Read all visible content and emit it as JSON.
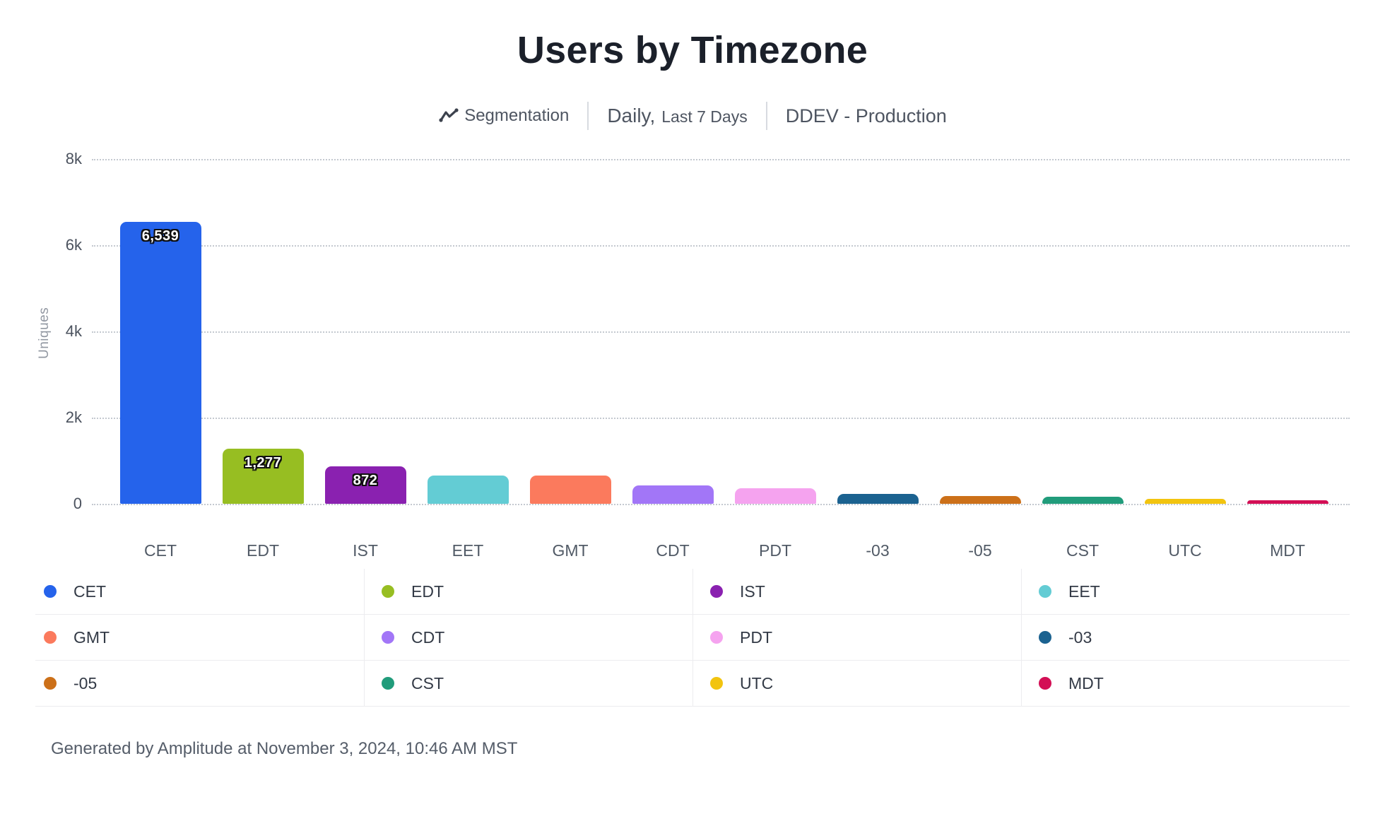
{
  "header": {
    "title": "Users by Timezone",
    "subtitle": {
      "segment_label": "Segmentation",
      "segment_icon": "segmentation-line-icon",
      "period_primary": "Daily,",
      "period_secondary": "Last 7 Days",
      "project": "DDEV - Production"
    }
  },
  "chart_data": {
    "type": "bar",
    "title": "Users by Timezone",
    "xlabel": "",
    "ylabel": "Uniques",
    "ylim": [
      0,
      8000
    ],
    "grid": "horizontal-dotted",
    "legend_position": "bottom",
    "yticks": [
      {
        "value": 0,
        "label": "0"
      },
      {
        "value": 2000,
        "label": "2k"
      },
      {
        "value": 4000,
        "label": "4k"
      },
      {
        "value": 6000,
        "label": "6k"
      },
      {
        "value": 8000,
        "label": "8k"
      }
    ],
    "categories": [
      "CET",
      "EDT",
      "IST",
      "EET",
      "GMT",
      "CDT",
      "PDT",
      "-03",
      "-05",
      "CST",
      "UTC",
      "MDT"
    ],
    "values": [
      6539,
      1277,
      872,
      660,
      650,
      430,
      360,
      225,
      175,
      170,
      120,
      90
    ],
    "value_labels": [
      "6,539",
      "1,277",
      "872",
      "",
      "",
      "",
      "",
      "",
      "",
      "",
      "",
      ""
    ],
    "colors": [
      "#2563eb",
      "#97be22",
      "#8a21b0",
      "#63ccd4",
      "#fb7a5d",
      "#a276f7",
      "#f5a3ef",
      "#1b6290",
      "#cc7019",
      "#219c7b",
      "#f2c40f",
      "#d30f55"
    ]
  },
  "legend": {
    "items": [
      {
        "label": "CET",
        "color": "#2563eb"
      },
      {
        "label": "EDT",
        "color": "#97be22"
      },
      {
        "label": "IST",
        "color": "#8a21b0"
      },
      {
        "label": "EET",
        "color": "#63ccd4"
      },
      {
        "label": "GMT",
        "color": "#fb7a5d"
      },
      {
        "label": "CDT",
        "color": "#a276f7"
      },
      {
        "label": "PDT",
        "color": "#f5a3ef"
      },
      {
        "label": "-03",
        "color": "#1b6290"
      },
      {
        "label": "-05",
        "color": "#cc7019"
      },
      {
        "label": "CST",
        "color": "#219c7b"
      },
      {
        "label": "UTC",
        "color": "#f2c40f"
      },
      {
        "label": "MDT",
        "color": "#d30f55"
      }
    ]
  },
  "footer": {
    "text": "Generated by Amplitude at November 3, 2024, 10:46 AM MST"
  }
}
